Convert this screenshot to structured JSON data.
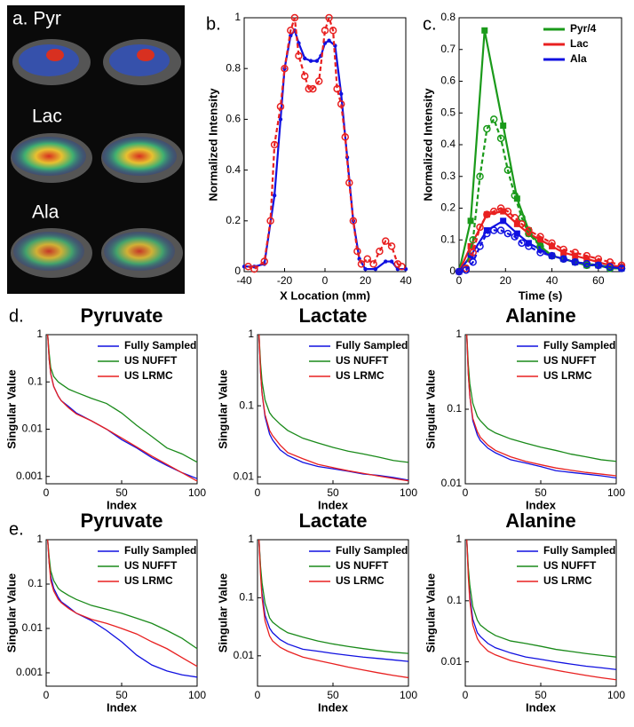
{
  "image_panel": {
    "labels": [
      "a. Pyr",
      "Lac",
      "Ala"
    ]
  },
  "chart_data": [
    {
      "type": "line",
      "panel_label": "b.",
      "x_label": "X Location (mm)",
      "y_label": "Normalized Intensity",
      "xlim": [
        -40,
        40
      ],
      "xticks": [
        -40,
        -20,
        0,
        20,
        40
      ],
      "ylim": [
        0,
        1
      ],
      "yticks": [
        0,
        0.2,
        0.4,
        0.6,
        0.8,
        1
      ],
      "series": [
        {
          "color": "#1010e0",
          "line_style": "solid",
          "marker": "dot",
          "x": [
            -40,
            -35,
            -30,
            -25,
            -22,
            -20,
            -17,
            -15,
            -13,
            -10,
            -7,
            -4,
            -2,
            0,
            2,
            5,
            8,
            11,
            14,
            17,
            20,
            25,
            30,
            33,
            36,
            40
          ],
          "values": [
            0.02,
            0.02,
            0.03,
            0.3,
            0.6,
            0.8,
            0.93,
            0.95,
            0.9,
            0.84,
            0.83,
            0.83,
            0.85,
            0.9,
            0.91,
            0.89,
            0.7,
            0.45,
            0.2,
            0.05,
            0.01,
            0.01,
            0.04,
            0.04,
            0.01,
            0.01
          ]
        },
        {
          "color": "#e82020",
          "line_style": "dashed",
          "marker": "circle",
          "x": [
            -38,
            -35,
            -30,
            -27,
            -25,
            -22,
            -20,
            -17,
            -15,
            -13,
            -10,
            -8,
            -6,
            -3,
            0,
            2,
            4,
            6,
            8,
            10,
            12,
            14,
            16,
            18,
            21,
            24,
            27,
            30,
            33,
            36,
            38
          ],
          "values": [
            0.02,
            0.01,
            0.04,
            0.2,
            0.5,
            0.65,
            0.8,
            0.95,
            1,
            0.85,
            0.77,
            0.72,
            0.72,
            0.75,
            0.95,
            1,
            0.95,
            0.72,
            0.66,
            0.53,
            0.35,
            0.2,
            0.08,
            0.03,
            0.05,
            0.03,
            0.08,
            0.12,
            0.1,
            0.03,
            0.02
          ]
        }
      ]
    },
    {
      "type": "line",
      "panel_label": "c.",
      "x_label": "Time (s)",
      "y_label": "Normalized Intensity",
      "xlim": [
        0,
        70
      ],
      "xticks": [
        0,
        20,
        40,
        60
      ],
      "ylim": [
        0,
        0.8
      ],
      "yticks": [
        0,
        0.1,
        0.2,
        0.3,
        0.4,
        0.5,
        0.6,
        0.7,
        0.8
      ],
      "legend": "upper right",
      "series": [
        {
          "name": "Pyr/4",
          "color": "#1a9a1a",
          "line_style": "solid",
          "marker": "square",
          "x": [
            0,
            5,
            11,
            19,
            25,
            30,
            35,
            40,
            50,
            60,
            70
          ],
          "values": [
            0,
            0.16,
            0.76,
            0.46,
            0.23,
            0.13,
            0.08,
            0.05,
            0.03,
            0.02,
            0.01
          ]
        },
        {
          "name": "Lac",
          "color": "#e82020",
          "line_style": "solid",
          "marker": "square",
          "x": [
            0,
            5,
            12,
            19,
            25,
            30,
            35,
            40,
            45,
            50,
            55,
            60,
            65,
            70
          ],
          "values": [
            0,
            0.08,
            0.18,
            0.19,
            0.15,
            0.12,
            0.1,
            0.08,
            0.06,
            0.05,
            0.04,
            0.03,
            0.02,
            0.015
          ]
        },
        {
          "name": "Ala",
          "color": "#1010e0",
          "line_style": "solid",
          "marker": "square",
          "x": [
            0,
            5,
            12,
            19,
            25,
            30,
            35,
            40,
            45,
            50,
            55,
            60,
            65,
            70
          ],
          "values": [
            0,
            0.05,
            0.13,
            0.16,
            0.12,
            0.09,
            0.07,
            0.05,
            0.04,
            0.03,
            0.02,
            0.02,
            0.01,
            0.01
          ]
        },
        {
          "color": "#1a9a1a",
          "line_style": "dashed",
          "marker": "circle",
          "x": [
            0,
            3,
            6,
            9,
            12,
            15,
            18,
            21,
            24,
            27,
            30,
            35,
            40,
            45,
            50,
            55,
            60,
            65,
            70
          ],
          "values": [
            0,
            0.01,
            0.1,
            0.3,
            0.45,
            0.48,
            0.42,
            0.32,
            0.24,
            0.17,
            0.12,
            0.08,
            0.05,
            0.04,
            0.03,
            0.02,
            0.02,
            0.01,
            0.01
          ]
        },
        {
          "color": "#e82020",
          "line_style": "dashed",
          "marker": "circle",
          "x": [
            0,
            3,
            6,
            9,
            12,
            15,
            18,
            21,
            24,
            27,
            30,
            35,
            40,
            45,
            50,
            55,
            60,
            65,
            70
          ],
          "values": [
            0,
            0.01,
            0.06,
            0.14,
            0.18,
            0.19,
            0.2,
            0.19,
            0.17,
            0.15,
            0.13,
            0.11,
            0.09,
            0.07,
            0.06,
            0.05,
            0.04,
            0.03,
            0.02
          ]
        },
        {
          "color": "#1010e0",
          "line_style": "dashed",
          "marker": "circle",
          "x": [
            0,
            3,
            6,
            9,
            12,
            15,
            18,
            21,
            24,
            27,
            30,
            35,
            40,
            45,
            50,
            55,
            60,
            65,
            70
          ],
          "values": [
            0,
            0.005,
            0.03,
            0.08,
            0.12,
            0.13,
            0.13,
            0.12,
            0.11,
            0.09,
            0.08,
            0.06,
            0.05,
            0.04,
            0.03,
            0.025,
            0.02,
            0.015,
            0.01
          ]
        }
      ]
    },
    {
      "type": "line",
      "panel_label": "d.",
      "title": "Pyruvate",
      "x_label": "Index",
      "y_label": "Singular Value",
      "log_y": true,
      "xlim": [
        0,
        100
      ],
      "xticks": [
        0,
        50,
        100
      ],
      "ylim": [
        0.0007,
        1
      ],
      "yticks": [
        0.001,
        0.01,
        0.1,
        1
      ],
      "legend": "upper right",
      "x": [
        1,
        2,
        3,
        5,
        8,
        10,
        15,
        20,
        30,
        40,
        50,
        60,
        70,
        80,
        90,
        100
      ],
      "series": [
        {
          "name": "Fully Sampled",
          "color": "#1010e0",
          "values": [
            1,
            0.3,
            0.15,
            0.08,
            0.05,
            0.04,
            0.03,
            0.022,
            0.015,
            0.01,
            0.006,
            0.004,
            0.0025,
            0.0017,
            0.0012,
            0.0009
          ]
        },
        {
          "name": "US NUFFT",
          "color": "#1a8a1a",
          "values": [
            1,
            0.4,
            0.2,
            0.13,
            0.1,
            0.09,
            0.07,
            0.06,
            0.045,
            0.035,
            0.022,
            0.012,
            0.007,
            0.004,
            0.003,
            0.002
          ]
        },
        {
          "name": "US LRMC",
          "color": "#e82020",
          "values": [
            1,
            0.3,
            0.15,
            0.08,
            0.05,
            0.04,
            0.028,
            0.021,
            0.015,
            0.01,
            0.0065,
            0.0042,
            0.0027,
            0.0018,
            0.0012,
            0.0008
          ]
        }
      ]
    },
    {
      "type": "line",
      "title": "Lactate",
      "x_label": "Index",
      "y_label": "Singular Value",
      "log_y": true,
      "xlim": [
        0,
        100
      ],
      "xticks": [
        0,
        50,
        100
      ],
      "ylim": [
        0.008,
        1
      ],
      "yticks": [
        0.01,
        0.1,
        1
      ],
      "legend": "upper right",
      "x": [
        1,
        2,
        3,
        5,
        8,
        10,
        15,
        20,
        30,
        40,
        50,
        60,
        70,
        80,
        90,
        100
      ],
      "series": [
        {
          "name": "Fully Sampled",
          "color": "#1010e0",
          "values": [
            1,
            0.3,
            0.15,
            0.07,
            0.04,
            0.033,
            0.024,
            0.02,
            0.016,
            0.014,
            0.013,
            0.012,
            0.011,
            0.0105,
            0.0098,
            0.009
          ]
        },
        {
          "name": "US NUFFT",
          "color": "#1a8a1a",
          "values": [
            1,
            0.4,
            0.22,
            0.12,
            0.08,
            0.07,
            0.055,
            0.045,
            0.035,
            0.03,
            0.026,
            0.023,
            0.021,
            0.019,
            0.017,
            0.016
          ]
        },
        {
          "name": "US LRMC",
          "color": "#e82020",
          "values": [
            1,
            0.3,
            0.15,
            0.075,
            0.045,
            0.038,
            0.028,
            0.022,
            0.018,
            0.015,
            0.0135,
            0.0122,
            0.0112,
            0.0103,
            0.0095,
            0.0088
          ]
        }
      ]
    },
    {
      "type": "line",
      "title": "Alanine",
      "x_label": "Index",
      "y_label": "Singular Value",
      "log_y": true,
      "xlim": [
        0,
        100
      ],
      "xticks": [
        0,
        50,
        100
      ],
      "ylim": [
        0.01,
        1
      ],
      "yticks": [
        0.01,
        0.1,
        1
      ],
      "legend": "upper right",
      "x": [
        1,
        2,
        3,
        5,
        8,
        10,
        15,
        20,
        30,
        40,
        50,
        60,
        70,
        80,
        90,
        100
      ],
      "series": [
        {
          "name": "Fully Sampled",
          "color": "#1010e0",
          "values": [
            1,
            0.3,
            0.15,
            0.07,
            0.045,
            0.038,
            0.03,
            0.026,
            0.021,
            0.019,
            0.017,
            0.015,
            0.0142,
            0.0135,
            0.0128,
            0.012
          ]
        },
        {
          "name": "US NUFFT",
          "color": "#1a8a1a",
          "values": [
            1,
            0.4,
            0.22,
            0.12,
            0.08,
            0.07,
            0.055,
            0.048,
            0.04,
            0.035,
            0.031,
            0.028,
            0.025,
            0.023,
            0.021,
            0.02
          ]
        },
        {
          "name": "US LRMC",
          "color": "#e82020",
          "values": [
            1,
            0.3,
            0.15,
            0.075,
            0.05,
            0.042,
            0.033,
            0.028,
            0.023,
            0.02,
            0.018,
            0.0163,
            0.0152,
            0.0142,
            0.0135,
            0.0128
          ]
        }
      ]
    },
    {
      "type": "line",
      "panel_label": "e.",
      "title": "Pyruvate",
      "x_label": "Index",
      "y_label": "Singular Value",
      "log_y": true,
      "xlim": [
        0,
        100
      ],
      "xticks": [
        0,
        50,
        100
      ],
      "ylim": [
        0.0005,
        1
      ],
      "yticks": [
        0.001,
        0.01,
        0.1,
        1
      ],
      "legend": "upper right",
      "x": [
        1,
        2,
        3,
        5,
        8,
        10,
        15,
        20,
        30,
        40,
        50,
        60,
        70,
        80,
        90,
        100
      ],
      "series": [
        {
          "name": "Fully Sampled",
          "color": "#1010e0",
          "values": [
            1,
            0.3,
            0.15,
            0.08,
            0.05,
            0.04,
            0.03,
            0.022,
            0.015,
            0.009,
            0.005,
            0.0025,
            0.0015,
            0.0011,
            0.0009,
            0.0008
          ]
        },
        {
          "name": "US NUFFT",
          "color": "#1a8a1a",
          "values": [
            1,
            0.4,
            0.2,
            0.12,
            0.08,
            0.07,
            0.055,
            0.045,
            0.033,
            0.027,
            0.022,
            0.017,
            0.013,
            0.009,
            0.006,
            0.0035
          ]
        },
        {
          "name": "US LRMC",
          "color": "#e82020",
          "values": [
            1,
            0.3,
            0.12,
            0.07,
            0.045,
            0.038,
            0.028,
            0.022,
            0.016,
            0.013,
            0.01,
            0.0075,
            0.005,
            0.0035,
            0.0022,
            0.0014
          ]
        }
      ]
    },
    {
      "type": "line",
      "title": "Lactate",
      "x_label": "Index",
      "y_label": "Singular Value",
      "log_y": true,
      "xlim": [
        0,
        100
      ],
      "xticks": [
        0,
        50,
        100
      ],
      "ylim": [
        0.003,
        1
      ],
      "yticks": [
        0.01,
        0.1,
        1
      ],
      "legend": "upper right",
      "x": [
        1,
        2,
        3,
        5,
        8,
        10,
        15,
        20,
        30,
        40,
        50,
        60,
        70,
        80,
        90,
        100
      ],
      "series": [
        {
          "name": "Fully Sampled",
          "color": "#1010e0",
          "values": [
            1,
            0.3,
            0.12,
            0.05,
            0.03,
            0.025,
            0.019,
            0.016,
            0.013,
            0.012,
            0.011,
            0.0102,
            0.0095,
            0.009,
            0.0085,
            0.008
          ]
        },
        {
          "name": "US NUFFT",
          "color": "#1a8a1a",
          "values": [
            1,
            0.35,
            0.18,
            0.08,
            0.045,
            0.038,
            0.03,
            0.025,
            0.021,
            0.018,
            0.016,
            0.0145,
            0.0133,
            0.0123,
            0.0115,
            0.011
          ]
        },
        {
          "name": "US LRMC",
          "color": "#e82020",
          "values": [
            1,
            0.25,
            0.1,
            0.04,
            0.022,
            0.018,
            0.014,
            0.012,
            0.0095,
            0.0083,
            0.0073,
            0.0064,
            0.0057,
            0.0051,
            0.0046,
            0.0042
          ]
        }
      ]
    },
    {
      "type": "line",
      "title": "Alanine",
      "x_label": "Index",
      "y_label": "Singular Value",
      "log_y": true,
      "xlim": [
        0,
        100
      ],
      "xticks": [
        0,
        50,
        100
      ],
      "ylim": [
        0.004,
        1
      ],
      "yticks": [
        0.01,
        0.1,
        1
      ],
      "legend": "upper right",
      "x": [
        1,
        2,
        3,
        5,
        8,
        10,
        15,
        20,
        30,
        40,
        50,
        60,
        70,
        80,
        90,
        100
      ],
      "series": [
        {
          "name": "Fully Sampled",
          "color": "#1010e0",
          "values": [
            1,
            0.3,
            0.12,
            0.05,
            0.03,
            0.026,
            0.02,
            0.017,
            0.014,
            0.012,
            0.011,
            0.01,
            0.0092,
            0.0085,
            0.008,
            0.0075
          ]
        },
        {
          "name": "US NUFFT",
          "color": "#1a8a1a",
          "values": [
            1,
            0.35,
            0.18,
            0.08,
            0.048,
            0.04,
            0.032,
            0.027,
            0.022,
            0.02,
            0.018,
            0.016,
            0.0148,
            0.0137,
            0.0128,
            0.012
          ]
        },
        {
          "name": "US LRMC",
          "color": "#e82020",
          "values": [
            1,
            0.25,
            0.1,
            0.04,
            0.024,
            0.02,
            0.015,
            0.013,
            0.0105,
            0.0092,
            0.0082,
            0.0073,
            0.0066,
            0.006,
            0.0055,
            0.0051
          ]
        }
      ]
    }
  ]
}
